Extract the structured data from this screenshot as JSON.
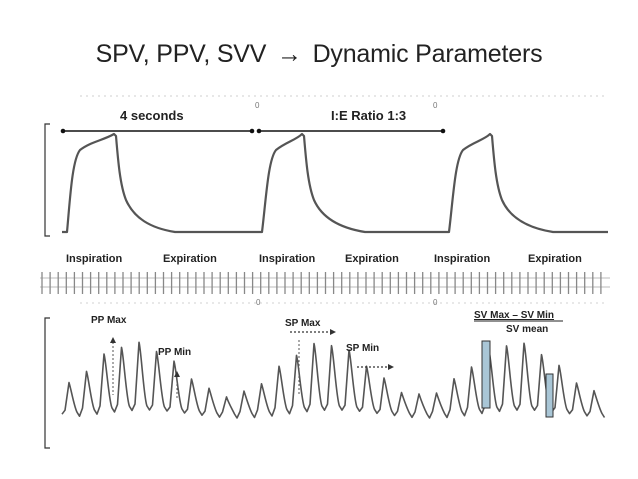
{
  "slide": {
    "title_left": "SPV, PPV, SVV",
    "title_arrow": "→",
    "title_right": "Dynamic Parameters"
  },
  "top_panel": {
    "duration_label": "4 seconds",
    "ie_label": "I:E Ratio 1:3",
    "phases": [
      "Inspiration",
      "Expiration",
      "Inspiration",
      "Expiration",
      "Inspiration",
      "Expiration"
    ]
  },
  "bottom_panel": {
    "pp_max": "PP Max",
    "pp_min": "PP Min",
    "sp_max": "SP Max",
    "sp_min": "SP Min",
    "sv_formula": "SV Max – SV Min",
    "sv_mean": "SV mean"
  },
  "colors": {
    "trace": "#555555",
    "bar_fill": "#a9c6d6",
    "text": "#222222"
  }
}
